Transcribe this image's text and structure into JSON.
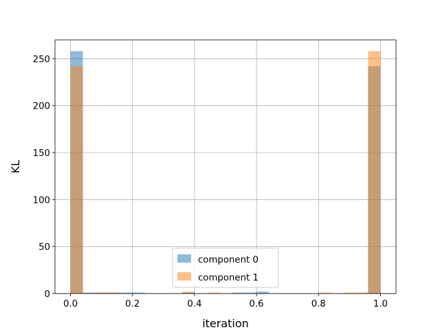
{
  "chart_data": {
    "type": "bar",
    "title": "",
    "xlabel": "iteration",
    "ylabel": "KL",
    "xlim": [
      -0.05,
      1.05
    ],
    "ylim": [
      0,
      270
    ],
    "grid": true,
    "legend_position": "lower-center",
    "x_ticks": [
      "0.0",
      "0.2",
      "0.4",
      "0.6",
      "0.8",
      "1.0"
    ],
    "y_ticks": [
      "0",
      "50",
      "100",
      "150",
      "200",
      "250"
    ],
    "bin_edges": [
      0.0,
      0.04,
      0.08,
      0.12,
      0.16,
      0.2,
      0.24,
      0.28,
      0.32,
      0.36,
      0.4,
      0.44,
      0.48,
      0.52,
      0.56,
      0.6,
      0.64,
      0.68,
      0.72,
      0.76,
      0.8,
      0.84,
      0.88,
      0.92,
      0.96,
      1.0
    ],
    "series": [
      {
        "name": "component 0",
        "color": "#1f77b4",
        "values": [
          258,
          1,
          1,
          1,
          1,
          1,
          0,
          0,
          0,
          1,
          0,
          0,
          0,
          1,
          1,
          2,
          0,
          0,
          0,
          0,
          0,
          0,
          0,
          0,
          242
        ]
      },
      {
        "name": "component 1",
        "color": "#ff7f0e",
        "values": [
          242,
          0,
          1,
          1,
          0,
          0,
          0,
          0,
          0,
          2,
          0,
          1,
          0,
          0,
          0,
          0,
          0,
          0,
          0,
          0,
          1,
          0,
          1,
          1,
          258
        ]
      }
    ]
  }
}
